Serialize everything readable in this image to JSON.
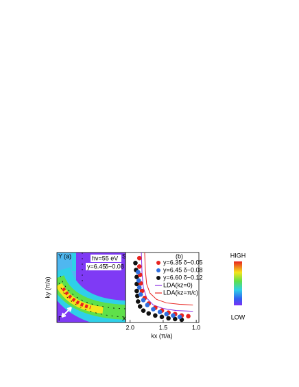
{
  "panel_a": {
    "label": "(a)",
    "corner_y": "Y",
    "corner_s": "S",
    "corner_g": "Γ",
    "corner_x": "X",
    "photon": "hν=55 eV",
    "doping_y": "y=6.45",
    "doping_d": "δ~0.08"
  },
  "y_axis_label": "ky (π/a)",
  "colorbar": {
    "high": "HIGH",
    "low": "LOW"
  },
  "chart_data": {
    "type": "scatter",
    "label": "(b)",
    "x_label": "kx (π/a)",
    "xlim": [
      2.07,
      0.96
    ],
    "xticks": [
      {
        "value": 2.0,
        "label": "2.0"
      },
      1.5,
      {
        "value": 1.0,
        "label": "1.0"
      }
    ],
    "ylim": [
      0,
      1
    ],
    "series": [
      {
        "name": "y=6.35  δ~0.05",
        "color": "#e8231f",
        "x": [
          1.86,
          1.86,
          1.85,
          1.84,
          1.82,
          1.78,
          1.72,
          1.62,
          1.52,
          1.42,
          1.32,
          1.22,
          1.12
        ],
        "values": [
          0.92,
          0.8,
          0.68,
          0.56,
          0.45,
          0.35,
          0.27,
          0.21,
          0.17,
          0.14,
          0.12,
          0.1,
          0.09
        ]
      },
      {
        "name": "y=6.45  δ~0.08",
        "color": "#2f6fe0",
        "x": [
          1.88,
          1.87,
          1.86,
          1.84,
          1.8,
          1.74,
          1.65,
          1.55,
          1.45,
          1.35,
          1.25
        ],
        "values": [
          0.72,
          0.6,
          0.5,
          0.4,
          0.32,
          0.25,
          0.19,
          0.15,
          0.12,
          0.1,
          0.08
        ]
      },
      {
        "name": "y=6.60  δ~0.12",
        "color": "#111111",
        "x": [
          1.92,
          1.91,
          1.9,
          1.9,
          1.9,
          1.89,
          1.88,
          1.85,
          1.8,
          1.72,
          1.62,
          1.52,
          1.42,
          1.32,
          1.22
        ],
        "values": [
          0.85,
          0.75,
          0.65,
          0.55,
          0.45,
          0.38,
          0.3,
          0.23,
          0.17,
          0.13,
          0.1,
          0.08,
          0.06,
          0.05,
          0.04
        ]
      }
    ],
    "lines": [
      {
        "name": "LDA(kz=0)",
        "color": "#8a2be2",
        "x": [
          1.83,
          1.82,
          1.8,
          1.75,
          1.65,
          1.5,
          1.3,
          1.05
        ],
        "values": [
          1.0,
          0.7,
          0.5,
          0.35,
          0.25,
          0.2,
          0.17,
          0.16
        ]
      },
      {
        "name": "LDA(kz=π/c)",
        "color": "#e8231f",
        "x": [
          1.78,
          1.77,
          1.75,
          1.7,
          1.6,
          1.45,
          1.25,
          1.05
        ],
        "values": [
          1.0,
          0.75,
          0.55,
          0.42,
          0.33,
          0.28,
          0.26,
          0.25
        ]
      }
    ]
  }
}
